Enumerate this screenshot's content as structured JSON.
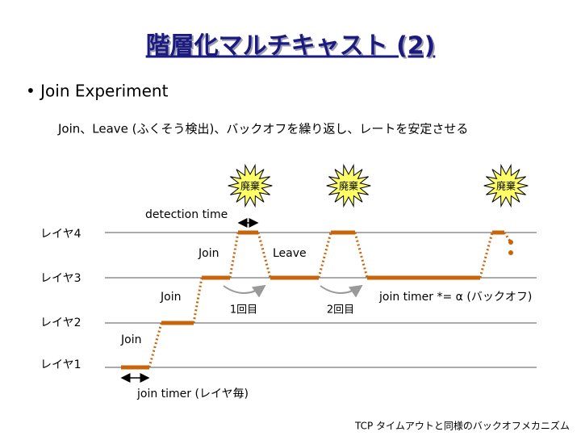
{
  "header": {
    "title": "階層化マルチキャスト (2)"
  },
  "bullet": "• Join Experiment",
  "subtitle": "Join、Leave (ふくそう検出)、バックオフを繰り返し、レートを安定させる",
  "bursts": [
    "廃棄",
    "廃棄",
    "廃棄"
  ],
  "detection_time": "detection time",
  "layers": [
    "レイヤ4",
    "レイヤ3",
    "レイヤ2",
    "レイヤ1"
  ],
  "annotations": {
    "join_l4": "Join",
    "leave": "Leave",
    "join_l3": "Join",
    "first": "1回目",
    "second": "2回目",
    "backoff": "join timer *= α (バックオフ)",
    "join_l2": "Join",
    "join_timer": "join timer (レイヤ毎)"
  },
  "footer": "TCP タイムアウトと同様のバックオフメカニズム"
}
